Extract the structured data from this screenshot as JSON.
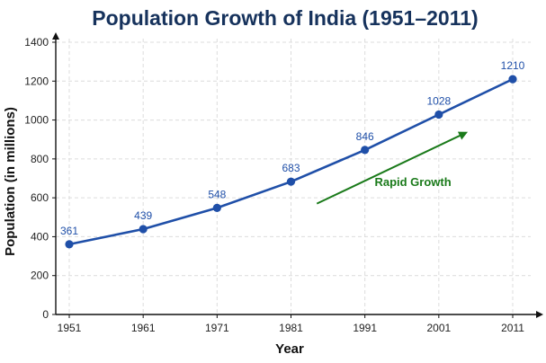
{
  "chart_data": {
    "type": "line",
    "title": "Population Growth of India (1951–2011)",
    "xlabel": "Year",
    "ylabel": "Population (in millions)",
    "x": [
      "1951",
      "1961",
      "1971",
      "1981",
      "1991",
      "2001",
      "2011"
    ],
    "series": [
      {
        "values": [
          361,
          439,
          548,
          683,
          846,
          1028,
          1210
        ]
      }
    ],
    "data_labels": [
      "361",
      "439",
      "548",
      "683",
      "846",
      "1028",
      "1210"
    ],
    "ylim": [
      0,
      1400
    ],
    "yticks": [
      0,
      200,
      400,
      600,
      800,
      1000,
      1200,
      1400
    ],
    "ytick_labels": [
      "0",
      "200",
      "400",
      "600",
      "800",
      "1000",
      "1200",
      "1400"
    ],
    "grid": true,
    "annotation": {
      "text": "Rapid Growth",
      "arrow_from": {
        "x": 1984.5,
        "y": 570
      },
      "arrow_to": {
        "x": 2004.7,
        "y": 935
      },
      "label_anchor": {
        "x": 1997.5,
        "y": 660
      }
    },
    "colors": {
      "line": "#1f4fa8",
      "title": "#16325c",
      "data_label": "#1f4fa8",
      "annotation": "#1a7a1a",
      "grid": "#dcdcdc",
      "axis": "#111111"
    }
  }
}
